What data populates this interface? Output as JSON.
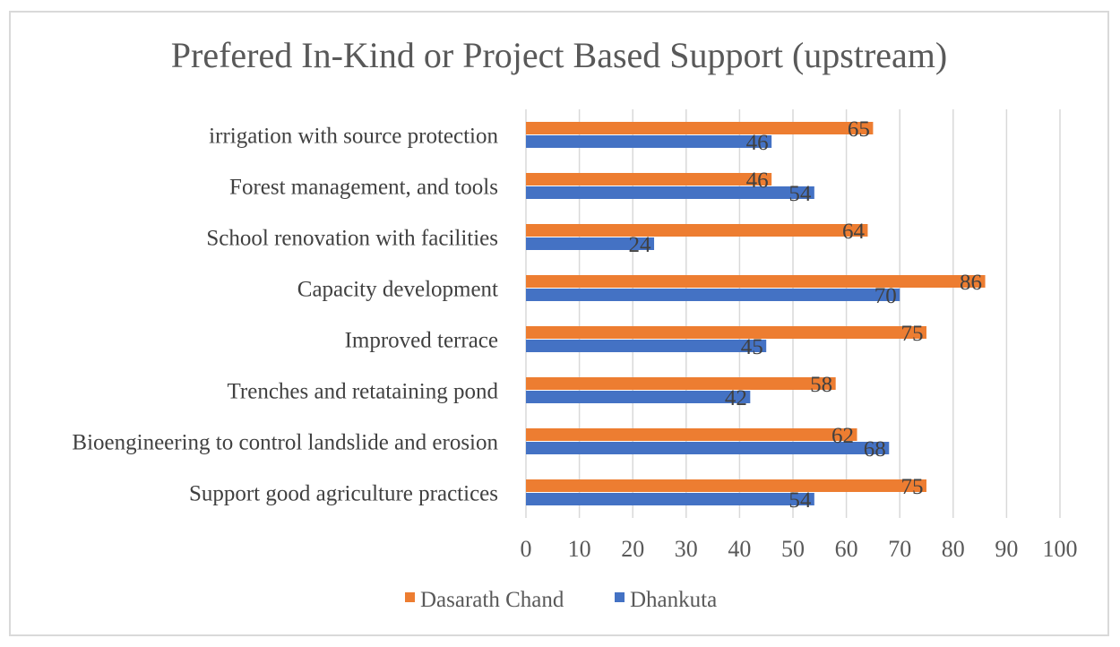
{
  "chart_data": {
    "type": "bar",
    "orientation": "horizontal",
    "title": "Prefered In-Kind or Project Based Support (upstream)",
    "categories": [
      "irrigation with source protection",
      "Forest management, and tools",
      "School renovation with facilities",
      "Capacity development",
      "Improved terrace",
      "Trenches and retataining pond",
      "Bioengineering to control landslide and erosion",
      "Support good agriculture practices"
    ],
    "series": [
      {
        "name": "Dasarath Chand",
        "color": "#ed7d31",
        "values": [
          65,
          46,
          64,
          86,
          75,
          58,
          62,
          75
        ]
      },
      {
        "name": "Dhankuta",
        "color": "#4472c4",
        "values": [
          46,
          54,
          24,
          70,
          45,
          42,
          68,
          54
        ]
      }
    ],
    "xlim": [
      0,
      100
    ],
    "xticks": [
      0,
      10,
      20,
      30,
      40,
      50,
      60,
      70,
      80,
      90,
      100
    ],
    "xlabel": "",
    "ylabel": "",
    "grid": true,
    "legend_position": "bottom",
    "data_labels": true
  }
}
